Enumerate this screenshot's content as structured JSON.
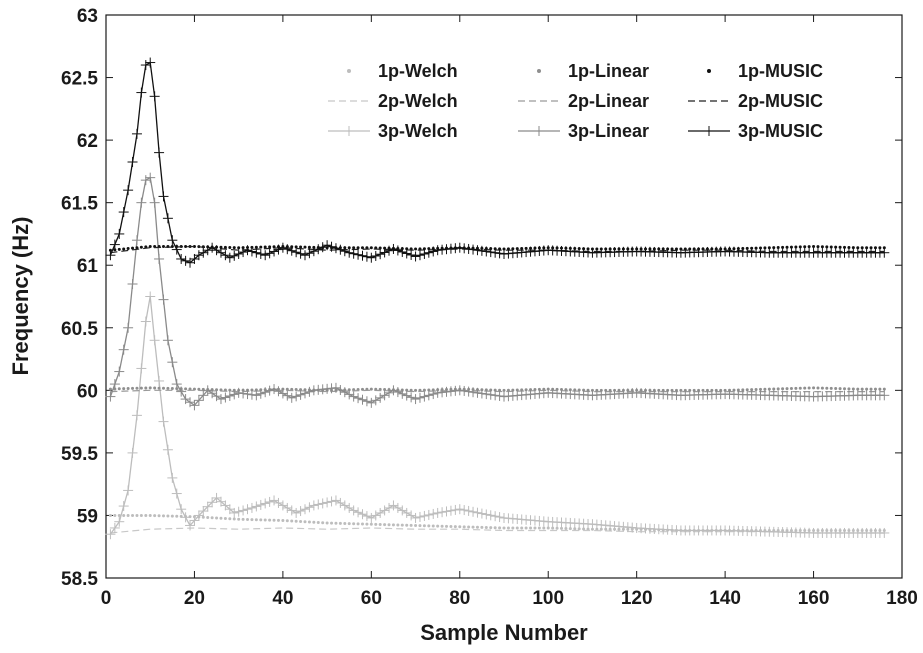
{
  "chart_data": {
    "type": "line",
    "xlabel": "Sample Number",
    "ylabel": "Frequency (Hz)",
    "xlim": [
      0,
      180
    ],
    "ylim": [
      58.5,
      63
    ],
    "xticks": [
      "0",
      "20",
      "40",
      "60",
      "80",
      "100",
      "120",
      "140",
      "160",
      "180"
    ],
    "yticks": [
      "58.5",
      "59",
      "59.5",
      "60",
      "60.5",
      "61",
      "61.5",
      "62",
      "62.5",
      "63"
    ],
    "grid": false,
    "legend": "top-right",
    "series": [
      {
        "name": "1p-Welch",
        "color": "#bdbdbd",
        "style": "dot",
        "x": [
          1,
          10,
          20,
          30,
          40,
          50,
          60,
          70,
          80,
          90,
          100,
          110,
          120,
          130,
          140,
          150,
          160,
          170,
          176
        ],
        "y": [
          59.0,
          59.0,
          58.99,
          58.97,
          58.96,
          58.94,
          58.93,
          58.92,
          58.91,
          58.9,
          58.9,
          58.89,
          58.89,
          58.88,
          58.88,
          58.88,
          58.88,
          58.88,
          58.88
        ]
      },
      {
        "name": "2p-Welch",
        "color": "#c8c8c8",
        "style": "dash",
        "x": [
          1,
          10,
          20,
          30,
          40,
          50,
          60,
          70,
          80,
          90,
          100,
          110,
          120,
          130,
          140,
          150,
          160,
          170,
          176
        ],
        "y": [
          58.86,
          58.89,
          58.9,
          58.89,
          58.9,
          58.89,
          58.9,
          58.89,
          58.89,
          58.88,
          58.88,
          58.88,
          58.87,
          58.87,
          58.87,
          58.87,
          58.86,
          58.86,
          58.86
        ]
      },
      {
        "name": "3p-Welch",
        "color": "#bdbdbd",
        "style": "plus",
        "x": [
          1,
          3,
          5,
          7,
          9,
          10,
          11,
          13,
          15,
          17,
          19,
          21,
          25,
          29,
          33,
          38,
          43,
          47,
          52,
          56,
          60,
          65,
          70,
          75,
          80,
          90,
          100,
          110,
          120,
          130,
          140,
          150,
          160,
          170,
          176
        ],
        "y": [
          58.85,
          58.95,
          59.2,
          59.8,
          60.55,
          60.75,
          60.4,
          59.75,
          59.3,
          59.05,
          58.92,
          59.0,
          59.14,
          59.02,
          59.06,
          59.12,
          59.02,
          59.08,
          59.12,
          59.04,
          58.98,
          59.08,
          58.98,
          59.02,
          59.05,
          58.98,
          58.95,
          58.93,
          58.9,
          58.88,
          58.88,
          58.87,
          58.86,
          58.86,
          58.86
        ]
      },
      {
        "name": "1p-Linear",
        "color": "#8f8f8f",
        "style": "dot",
        "x": [
          1,
          10,
          20,
          30,
          40,
          50,
          60,
          70,
          80,
          90,
          100,
          110,
          120,
          130,
          140,
          150,
          160,
          170,
          176
        ],
        "y": [
          60.01,
          60.02,
          60.01,
          60.0,
          60.01,
          60.0,
          60.01,
          60.0,
          60.01,
          60.0,
          60.01,
          60.0,
          60.0,
          60.0,
          60.0,
          60.01,
          60.02,
          60.01,
          60.01
        ]
      },
      {
        "name": "2p-Linear",
        "color": "#9a9a9a",
        "style": "dash",
        "x": [
          1,
          10,
          20,
          30,
          40,
          50,
          60,
          70,
          80,
          90,
          100,
          110,
          120,
          130,
          140,
          150,
          160,
          170,
          176
        ],
        "y": [
          59.99,
          60.0,
          60.0,
          59.99,
          60.0,
          59.99,
          60.0,
          59.99,
          60.0,
          59.99,
          60.0,
          59.99,
          59.99,
          59.99,
          59.99,
          59.99,
          59.99,
          59.99,
          59.99
        ]
      },
      {
        "name": "3p-Linear",
        "color": "#8a8a8a",
        "style": "plus",
        "x": [
          1,
          3,
          5,
          7,
          8,
          9,
          10,
          11,
          12,
          14,
          16,
          18,
          20,
          23,
          26,
          30,
          34,
          38,
          42,
          47,
          52,
          56,
          60,
          65,
          70,
          75,
          80,
          90,
          100,
          110,
          120,
          130,
          140,
          150,
          160,
          170,
          176
        ],
        "y": [
          59.95,
          60.15,
          60.5,
          61.2,
          61.5,
          61.68,
          61.7,
          61.5,
          61.05,
          60.4,
          60.05,
          59.93,
          59.88,
          60.0,
          59.93,
          59.98,
          59.96,
          60.01,
          59.94,
          60.0,
          60.02,
          59.95,
          59.9,
          60.0,
          59.93,
          59.98,
          60.0,
          59.95,
          59.98,
          59.96,
          59.98,
          59.96,
          59.97,
          59.96,
          59.95,
          59.96,
          59.96
        ]
      },
      {
        "name": "1p-MUSIC",
        "color": "#111111",
        "style": "dot",
        "x": [
          1,
          10,
          20,
          30,
          40,
          50,
          60,
          70,
          80,
          90,
          100,
          110,
          120,
          130,
          140,
          150,
          160,
          170,
          176
        ],
        "y": [
          61.12,
          61.15,
          61.15,
          61.14,
          61.15,
          61.14,
          61.14,
          61.13,
          61.14,
          61.13,
          61.14,
          61.13,
          61.13,
          61.13,
          61.13,
          61.14,
          61.15,
          61.14,
          61.14
        ]
      },
      {
        "name": "2p-MUSIC",
        "color": "#222222",
        "style": "dash",
        "x": [
          1,
          10,
          20,
          30,
          40,
          50,
          60,
          70,
          80,
          90,
          100,
          110,
          120,
          130,
          140,
          150,
          160,
          170,
          176
        ],
        "y": [
          61.1,
          61.14,
          61.15,
          61.12,
          61.14,
          61.12,
          61.13,
          61.12,
          61.13,
          61.12,
          61.12,
          61.11,
          61.11,
          61.12,
          61.12,
          61.11,
          61.11,
          61.11,
          61.11
        ]
      },
      {
        "name": "3p-MUSIC",
        "color": "#111111",
        "style": "plus",
        "x": [
          1,
          3,
          5,
          7,
          8,
          9,
          10,
          11,
          12,
          13,
          15,
          17,
          19,
          21,
          24,
          28,
          32,
          36,
          40,
          45,
          50,
          55,
          60,
          65,
          70,
          75,
          80,
          90,
          100,
          110,
          120,
          130,
          140,
          150,
          160,
          170,
          176
        ],
        "y": [
          61.08,
          61.25,
          61.6,
          62.05,
          62.38,
          62.6,
          62.62,
          62.35,
          61.9,
          61.55,
          61.2,
          61.05,
          61.02,
          61.08,
          61.14,
          61.06,
          61.12,
          61.08,
          61.14,
          61.08,
          61.16,
          61.1,
          61.06,
          61.13,
          61.07,
          61.12,
          61.14,
          61.09,
          61.12,
          61.1,
          61.11,
          61.1,
          61.11,
          61.1,
          61.1,
          61.1,
          61.1
        ]
      }
    ]
  }
}
